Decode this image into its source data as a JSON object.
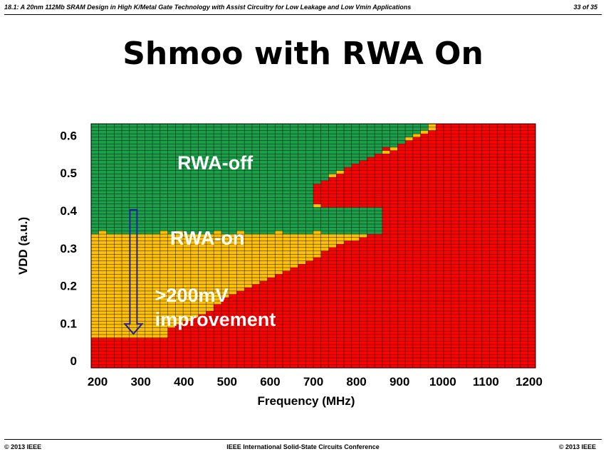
{
  "header": {
    "subtitle": "18.1: A 20nm 112Mb SRAM Design in High K/Metal Gate Technology with Assist Circuitry for Low Leakage and Low Vmin Applications",
    "page": "33 of 35"
  },
  "slide": {
    "title": "Shmoo with RWA On"
  },
  "footer": {
    "left": "© 2013 IEEE",
    "center": "IEEE International Solid-State Circuits Conference",
    "right": "© 2013 IEEE"
  },
  "colors": {
    "pass_rwa_off": "#1BA04A",
    "pass_rwa_on": "#FFC000",
    "fail": "#FF0000",
    "grid": "#000000",
    "arrow": "#1F1FA8"
  },
  "chart_data": {
    "type": "heatmap",
    "xlabel": "Frequency (MHz)",
    "ylabel": "VDD (a.u.)",
    "xticks": [
      "200",
      "300",
      "400",
      "500",
      "600",
      "700",
      "800",
      "900",
      "1000",
      "1100",
      "1200"
    ],
    "yticks": [
      "0",
      "0.1",
      "0.2",
      "0.3",
      "0.4",
      "0.5",
      "0.6"
    ],
    "xlim": [
      185,
      1215
    ],
    "ylim": [
      -0.0185,
      0.631
    ],
    "cell_width_mhz": 24.5,
    "cell_height_vdd": 0.0131,
    "legend": [
      {
        "key": "G",
        "meaning": "pass (RWA-off)"
      },
      {
        "key": "Y",
        "meaning": "pass (RWA-on)"
      },
      {
        "key": "R",
        "meaning": "fail"
      }
    ],
    "rows_top_to_bottom": [
      "GGGGGGGGGGGGGGGGGGGGGGGGGGGGGGGGGGGGGGGGGGGGYRRRRRRRRRRRRR",
      "GGGGGGGGGGGGGGGGGGGGGGGGGGGGGGGGGGGGGGGGGGGGYRRRRRRRRRRRRR",
      "GGGGGGGGGGGGGGGGGGGGGGGGGGGGGGGGGGGGGGGGGGGYRRRRRRRRRRRRRR",
      "GGGGGGGGGGGGGGGGGGGGGGGGGGGGGGGGGGGGGGGGGGYRRRRRRRRRRRRRRR",
      "GGGGGGGGGGGGGGGGGGGGGGGGGGGGGGGGGGGGGGGGGYRRRRRRRRRRRRRRRR",
      "GGGGGGGGGGGGGGGGGGGGGGGGGGGGGGGGGGGGGGGGGRRRRRRRRRRRRRRRRR",
      "GGGGGGGGGGGGGGGGGGGGGGGGGGGGGGGGGGGGGGGGRRRRRRRRRRRRRRRRRR",
      "GGGGGGGGGGGGGGGGGGGGGGGGGGGGGGGGGGGGGGRYRRRRRRRRRRRRRRRRRR",
      "GGGGGGGGGGGGGGGGGGGGGGGGGGGGGGGGGGGGGGYRRRRRRRRRRRRRRRRRRR",
      "GGGGGGGGGGGGGGGGGGGGGGGGGGGGGGGGGGGGGRRRRRRRRRRRRRRRRRRRRR",
      "GGGGGGGGGGGGGGGGGGGGGGGGGGGGGGGGGGGGRRRRRRRRRRRRRRRRRRRRRR",
      "GGGGGGGGGGGGGGGGGGGGGGGGGGGGGGGGGGGRRRRRRRRRRRRRRRRRRRRRRR",
      "GGGGGGGGGGGGGGGGGGGGGGGGGGGGGGGGGGRRRRRRRRRRRRRRRRRRRRRRRR",
      "GGGGGGGGGGGGGGGGGGGGGGGGGGGGGGGGGRRRRRRRRRRRRRRRRRRRRRRRRR",
      "GGGGGGGGGGGGGGGGGGGGGGGGGGGGGGGGYRRRRRRRRRRRRRRRRRRRRRRRRR",
      "GGGGGGGGGGGGGGGGGGGGGGGGGGGGGGGYRRRRRRRRRRRRRRRRRRRRRRRRRR",
      "GGGGGGGGGGGGGGGGGGGGGGGGGGGGGGGRRRRRRRRRRRRRRRRRRRRRRRRRRR",
      "GGGGGGGGGGGGGGGGGGGGGGGGGGGGGGRRRRRRRRRRRRRRRRRRRRRRRRRRRR",
      "GGGGGGGGGGGGGGGGGGGGGGGGGGGGGRRRRRRRRRRRRRRRRRRRRRRRRRRRRR",
      "GGGGGGGGGGGGGGGGGGGGGGGGGGGGGRRRRRRRRRRRRRRRRRRRRRRRRRRRRR",
      "GGGGGGGGGGGGGGGGGGGGGGGGGGGGGRRRRRRRRRRRRRRRRRRRRRRRRRRRRR",
      "GGGGGGGGGGGGGGGGGGGGGGGGGGGGGRRRRRRRRRRRRRRRRRRRRRRRRRRRRR",
      "GGGGGGGGGGGGGGGGGGGGGGGGGGGGGRRRRRRRRRRRRRRRRRRRRRRRRRRRRR",
      "GGGGGGGGGGGGGGGGGGGGGGGGGGGGGRRRRRRRRRRRRRRRRRRRRRRRRRRRRR",
      "GGGGGGGGGGGGGGGGGGGGGGGGGGGGGYRRRRRRRRRRRRRRRRRRRRRRRRRRRR",
      "GGGGGGGGGGGGGGGGGGGGGGGGGGGGGGGGGGGGGGRRRRRRRRRRRRRRRRRRRR",
      "GGGGGGGGGGGGGGGGGGGGGGGGGGGGGGGGGGGGGGRRRRRRRRRRRRRRRRRRRR",
      "GGGGGGGGGGGGGGGGGGGGGGGGGGGGGGGGGGGGGGRRRRRRRRRRRRRRRRRRRR",
      "GGGGGGGGGGGGGGGGGGGGGGGGGGGGGGGGGGGGGGRRRRRRRRRRRRRRRRRRRR",
      "GGGGGGGGGGGGGGGGGGGGGGGGGGGGGGGGGGGGGGRRRRRRRRRRRRRRRRRRRR",
      "GGGGGGGGGGGGGGGGGGGGGGGGGGGGGGGGGGGGGGRRRRRRRRRRRRRRRRRRRR",
      "GGGGGGGGGGGGGGGGGGGGGGGGGGGGGGGGGGGGGGRRRRRRRRRRRRRRRRRRRR",
      "GYGGGGGGGYGYGGGGYGGYGGGGYGGGGYGGGGGGGGRRRRRRRRRRRRRRRRRRRR",
      "YYYYYYYYYYYYYYYYYYYYYYYYYYYYYYYYYYYYRRRRRRRRRRRRRRRRRRRRRR",
      "YYYYYYYYYYYYYYYYYYYYYYYYYYYYYYYYYYYRRRRRRRRRRRRRRRRRRRRRRR",
      "YYYYYYYYYYYYYYYYYYYYYYYYYYYYYYYYYRRRRRRRRRRRRRRRRRRRRRRRRR",
      "YYYYYYYYYYYYYYYYYYYYYYYYYYYYYYYYRRRRRRRRRRRRRRRRRRRRRRRRRR",
      "YYYYYYYYYYYYYYYYYYYYYYYYYYYYYYYRRRRRRRRRRRRRRRRRRRRRRRRRRR",
      "YYYYYYYYYYYYYYYYYYYYYYYYYYYYYYRRRRRRRRRRRRRRRRRRRRRRRRRRRR",
      "YYYYYYYYYYYYYYYYYYYYYYYYYYYYYYRRRRRRRRRRRRRRRRRRRRRRRRRRRR",
      "YYYYYYYYYYYYYYYYYYYYYYYYYYYYYRRRRRRRRRRRRRRRRRRRRRRRRRRRRR",
      "YYYYYYYYYYYYYYYYYYYYYYYYYYYYRRRRRRRRRRRRRRRRRRRRRRRRRRRRRR",
      "YYYYYYYYYYYYYYYYYYYYYYYYYYYRRRRRRRRRRRRRRRRRRRRRRRRRRRRRRR",
      "YYYYYYYYYYYYYYYYYYYYYYYYYYRRRRRRRRRRRRRRRRRRRRRRRRRRRRRRRR",
      "YYYYYYYYYYYYYYYYYYYYYYYYYRRRRRRRRRRRRRRRRRRRRRRRRRRRRRRRRR",
      "YYYYYYYYYYYYYYYYYYYYYYYYRRRRRRRRRRRRRRRRRRRRRRRRRRRRRRRRRR",
      "YYYYYYYYYYYYYYYYYYYYYYYRRRRRRRRRRRRRRRRRRRRRRRRRRRRRRRRRRR",
      "YYYYYYYYYYYYYYYYYYYYYYRRRRRRRRRRRRRRRRRRRRRRRRRRRRRRRRRRRR",
      "YYYYYYYYYYYYYYYYYYYYYRRRRRRRRRRRRRRRRRRRRRRRRRRRRRRRRRRRRR",
      "YYYYYYYYYYYYYYYYYYYYRRRRRRRRRRRRRRRRRRRRRRRRRRRRRRRRRRRRRR",
      "YYYYYYYYYYYYYYYYYYYRRRRRRRRRRRRRRRRRRRRRRRRRRRRRRRRRRRRRRR",
      "YYYYYYYYYYYYYYYYYYRRRRRRRRRRRRRRRRRRRRRRRRRRRRRRRRRRRRRRRR",
      "YYYYYYYYYYYYYYYYYRRRRRRRRRRRRRRRRRRRRRRRRRRRRRRRRRRRRRRRRR",
      "YYYYYYYYYYYYYYYYYRRRRRRRRRRRRRRRRRRRRRRRRRRRRRRRRRRRRRRRRR",
      "YYYYYYYYYYYYYYYYRRRRRRRRRRRRRRRRRRRRRRRRRRRRRRRRRRRRRRRRRR",
      "YYYYYYYYYYYYYYYYRRRRRRRRRRRRRRRRRRRRRRRRRRRRRRRRRRRRRRRRRR",
      "YYYYYYYYYYYYYYYRRRRRRRRRRRRRRRRRRRRRRRRRRRRRRRRRRRRRRRRRRR",
      "YYYYYYYYYYYYYYRRRRRRRRRRRRRRRRRRRRRRRRRRRRRRRRRRRRRRRRRRRR",
      "YYYYYYYYYYYYYRRRRRRRRRRRRRRRRRRRRRRRRRRRRRRRRRRRRRRRRRRRRR",
      "YYYYYYYYYYYYRRRRRRRRRRRRRRRRRRRRRRRRRRRRRRRRRRRRRRRRRRRRRR",
      "YYYYYYYYYYYRRRRRRRRRRRRRRRRRRRRRRRRRRRRRRRRRRRRRRRRRRRRRRR",
      "YYYYYYYYYYRRRRRRRRRRRRRRRRRRRRRRRRRRRRRRRRRRRRRRRRRRRRRRRR",
      "YYYYYYYYYYRRRRRRRRRRRRRRRRRRRRRRRRRRRRRRRRRRRRRRRRRRRRRRRR",
      "YYYYYYYYYYRRRRRRRRRRRRRRRRRRRRRRRRRRRRRRRRRRRRRRRRRRRRRRRR",
      "RRRRRRRRRRRRRRRRRRRRRRRRRRRRRRRRRRRRRRRRRRRRRRRRRRRRRRRRRR",
      "RRRRRRRRRRRRRRRRRRRRRRRRRRRRRRRRRRRRRRRRRRRRRRRRRRRRRRRRRR",
      "RRRRRRRRRRRRRRRRRRRRRRRRRRRRRRRRRRRRRRRRRRRRRRRRRRRRRRRRRR",
      "RRRRRRRRRRRRRRRRRRRRRRRRRRRRRRRRRRRRRRRRRRRRRRRRRRRRRRRRRR",
      "RRRRRRRRRRRRRRRRRRRRRRRRRRRRRRRRRRRRRRRRRRRRRRRRRRRRRRRRRR",
      "RRRRRRRRRRRRRRRRRRRRRRRRRRRRRRRRRRRRRRRRRRRRRRRRRRRRRRRRRR",
      "RRRRRRRRRRRRRRRRRRRRRRRRRRRRRRRRRRRRRRRRRRRRRRRRRRRRRRRRRR",
      "RRRRRRRRRRRRRRRRRRRRRRRRRRRRRRRRRRRRRRRRRRRRRRRRRRRRRRRRRR",
      "RRRRRRRRRRRRRRRRRRRRRRRRRRRRRRRRRRRRRRRRRRRRRRRRRRRRRRRRRR"
    ],
    "annotations": [
      {
        "text": "RWA-off",
        "x": 385,
        "y": 0.51
      },
      {
        "text": "RWA-on",
        "x": 368,
        "y": 0.31
      },
      {
        "text": ">200mV",
        "x": 333,
        "y": 0.158
      },
      {
        "text": "improvement",
        "x": 333,
        "y": 0.093
      }
    ],
    "arrow": {
      "x": 283,
      "y_start": 0.402,
      "y_end": 0.072
    }
  }
}
